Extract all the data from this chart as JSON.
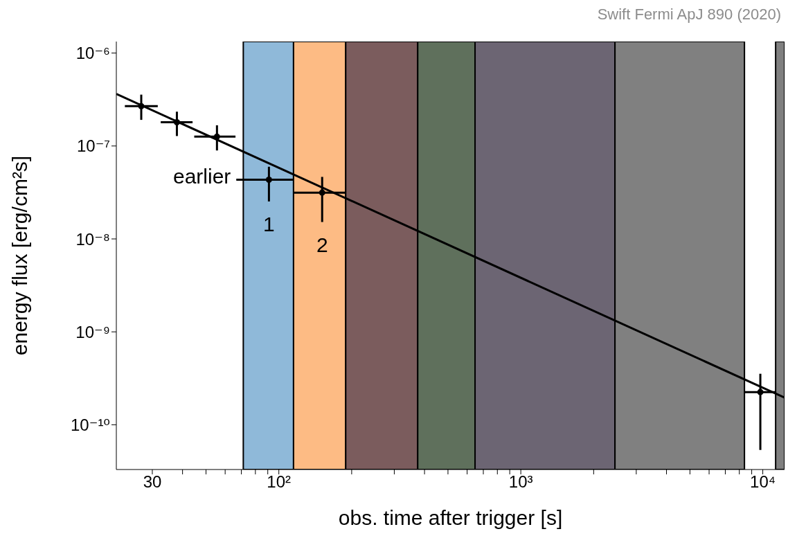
{
  "chart_data": {
    "type": "scatter",
    "xlabel": "obs. time after trigger [s]",
    "ylabel": "energy flux [erg/cm²s]",
    "log": "xy",
    "xlim": [
      21.3,
      12300
    ],
    "ylim": [
      3.3e-11,
      1.33e-06
    ],
    "xticks": [
      30,
      {
        "value": 40,
        "label": null
      },
      {
        "value": 50,
        "label": null
      },
      {
        "value": 60,
        "label": null
      },
      {
        "value": 70,
        "label": null
      },
      {
        "value": 80,
        "label": null
      },
      {
        "value": 90,
        "label": null
      },
      {
        "value": 100,
        "label": "10²"
      },
      {
        "value": 200,
        "label": null
      },
      {
        "value": 300,
        "label": null
      },
      {
        "value": 400,
        "label": null
      },
      {
        "value": 500,
        "label": null
      },
      {
        "value": 600,
        "label": null
      },
      {
        "value": 700,
        "label": null
      },
      {
        "value": 800,
        "label": null
      },
      {
        "value": 900,
        "label": null
      },
      {
        "value": 1000,
        "label": "10³"
      },
      {
        "value": 2000,
        "label": null
      },
      {
        "value": 3000,
        "label": null
      },
      {
        "value": 4000,
        "label": null
      },
      {
        "value": 5000,
        "label": null
      },
      {
        "value": 6000,
        "label": null
      },
      {
        "value": 7000,
        "label": null
      },
      {
        "value": 8000,
        "label": null
      },
      {
        "value": 9000,
        "label": null
      },
      {
        "value": 10000,
        "label": "10⁴"
      }
    ],
    "yticks": [
      {
        "value": 1e-10,
        "label": "10⁻¹⁰"
      },
      {
        "value": 1e-09,
        "label": "10⁻⁹"
      },
      {
        "value": 1e-08,
        "label": "10⁻⁸"
      },
      {
        "value": 1e-07,
        "label": "10⁻⁷"
      },
      {
        "value": 1e-06,
        "label": "10⁻⁶"
      }
    ],
    "series": [
      {
        "marker": "circle",
        "color": "#000000",
        "x": [
          27.0,
          37.9,
          55.5,
          91,
          151,
          9770
        ],
        "values": [
          2.68e-07,
          1.8e-07,
          1.26e-07,
          4.34e-08,
          3.15e-08,
          2.25e-10
        ],
        "xerrors": [
          [
            23.1,
            31.6
          ],
          [
            32.5,
            44
          ],
          [
            44.7,
            66.2
          ],
          [
            66.7,
            115
          ],
          [
            115,
            189
          ],
          [
            8400,
            11300
          ]
        ],
        "errors": [
          [
            1.91e-07,
            3.57e-07
          ],
          [
            1.28e-07,
            2.34e-07
          ],
          [
            8.95e-08,
            1.67e-07
          ],
          [
            2.53e-08,
            5.98e-08
          ],
          [
            1.52e-08,
            4.65e-08
          ],
          [
            5.36e-11,
            3.54e-10
          ]
        ]
      },
      {
        "type": "line",
        "color": "#000000",
        "x": [
          21.3,
          12300
        ],
        "values": [
          3.63e-07,
          1.96e-10
        ]
      }
    ],
    "bands": [
      {
        "axis": "x",
        "from": 71.3,
        "to": 115,
        "color": "#8fb9d9"
      },
      {
        "axis": "x",
        "from": 115,
        "to": 189,
        "color": "#fdbb84"
      },
      {
        "axis": "x",
        "from": 189,
        "to": 375,
        "color": "#7b5c5d"
      },
      {
        "axis": "x",
        "from": 375,
        "to": 647,
        "color": "#5f705c"
      },
      {
        "axis": "x",
        "from": 647,
        "to": 2450,
        "color": "#6c6573"
      },
      {
        "axis": "x",
        "from": 2450,
        "to": 8400,
        "color": "#808080"
      },
      {
        "axis": "x",
        "from": 11300,
        "to": 12300,
        "color": "#808080"
      }
    ],
    "annotations": [
      "Swift Fermi ApJ 890 (2020)",
      "earlier",
      "1",
      "2"
    ]
  }
}
